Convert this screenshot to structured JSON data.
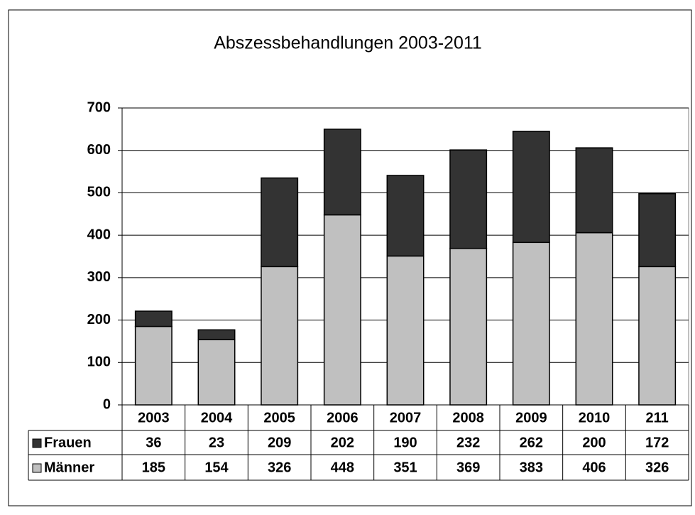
{
  "chart_data": {
    "type": "bar",
    "stacked": true,
    "title": "Abszessbehandlungen 2003-2011",
    "categories": [
      "2003",
      "2004",
      "2005",
      "2006",
      "2007",
      "2008",
      "2009",
      "2010",
      "211"
    ],
    "series": [
      {
        "name": "Frauen",
        "color": "#333333",
        "values": [
          36,
          23,
          209,
          202,
          190,
          232,
          262,
          200,
          172
        ]
      },
      {
        "name": "Männer",
        "color": "#c0c0c0",
        "values": [
          185,
          154,
          326,
          448,
          351,
          369,
          383,
          406,
          326
        ]
      }
    ],
    "ylim": [
      0,
      700
    ],
    "yticks": [
      0,
      100,
      200,
      300,
      400,
      500,
      600,
      700
    ],
    "grid": true
  }
}
